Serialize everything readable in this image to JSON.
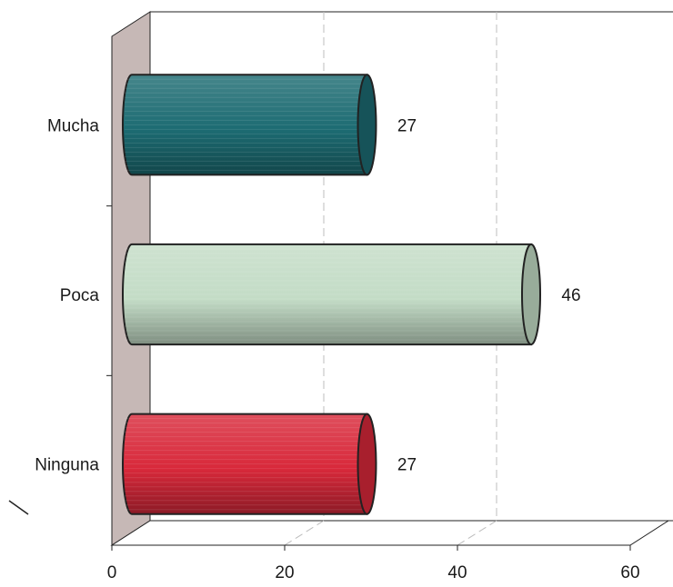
{
  "chart_data": {
    "type": "bar",
    "orientation": "horizontal",
    "style": "3d-cylinder",
    "title": "",
    "xlabel": "",
    "ylabel": "",
    "categories": [
      "Mucha",
      "Poca",
      "Ninguna"
    ],
    "values": [
      27,
      46,
      27
    ],
    "data_labels": [
      "27",
      "46",
      "27"
    ],
    "colors": [
      "#1c6b72",
      "#c3dcc6",
      "#d8283a"
    ],
    "xlim": [
      0,
      60
    ],
    "x_ticks": [
      0,
      20,
      40,
      60
    ],
    "x_tick_labels": [
      "0",
      "20",
      "40",
      "60"
    ],
    "grid": true,
    "legend": "none"
  }
}
